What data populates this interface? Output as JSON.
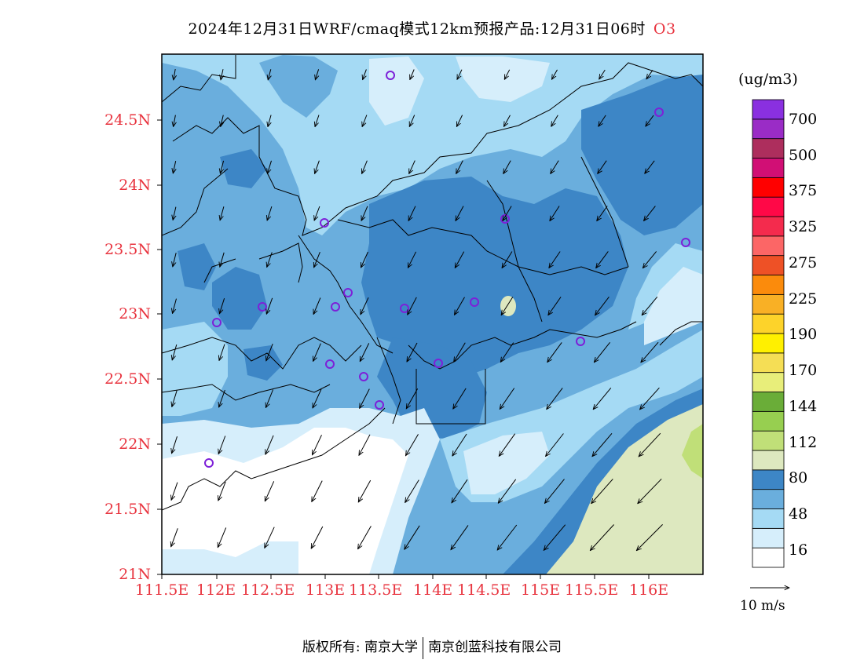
{
  "title": {
    "text": "2024年12月31日WRF/cmaq模式12km预报产品:12月31日06时",
    "pollutant": "O3"
  },
  "axes": {
    "lat_labels": [
      "24.5N",
      "24N",
      "23.5N",
      "23N",
      "22.5N",
      "22N",
      "21.5N",
      "21N"
    ],
    "lon_labels": [
      "111.5E",
      "112E",
      "112.5E",
      "113E",
      "113.5E",
      "114E",
      "114.5E",
      "115E",
      "115.5E",
      "116E"
    ],
    "label_color": "#e8343f"
  },
  "colorbar": {
    "unit": "(ug/m3)",
    "labels": [
      "700",
      "500",
      "375",
      "325",
      "275",
      "225",
      "190",
      "170",
      "144",
      "112",
      "80",
      "48",
      "16"
    ],
    "colors": [
      "#ffffff",
      "#d6eefb",
      "#a5daf4",
      "#6aaedd",
      "#3d86c6",
      "#dde8bf",
      "#c0df78",
      "#97cf50",
      "#6aad38",
      "#e8ee7a",
      "#f5de55",
      "#fff000",
      "#fdd32a",
      "#f9b025",
      "#fb8b0c",
      "#ee5126",
      "#fc6666",
      "#f42b4d",
      "#ff0847",
      "#ff0000",
      "#d10f75",
      "#ad2e5d",
      "#9a2cc6",
      "#8a30e0"
    ]
  },
  "wind_reference": {
    "label": "10 m/s"
  },
  "copyright": {
    "left": "版权所有: 南京大学",
    "right": "南京创蓝科技有限公司"
  },
  "colors": {
    "station_circle": "#7d20d8",
    "border": "#000000"
  }
}
